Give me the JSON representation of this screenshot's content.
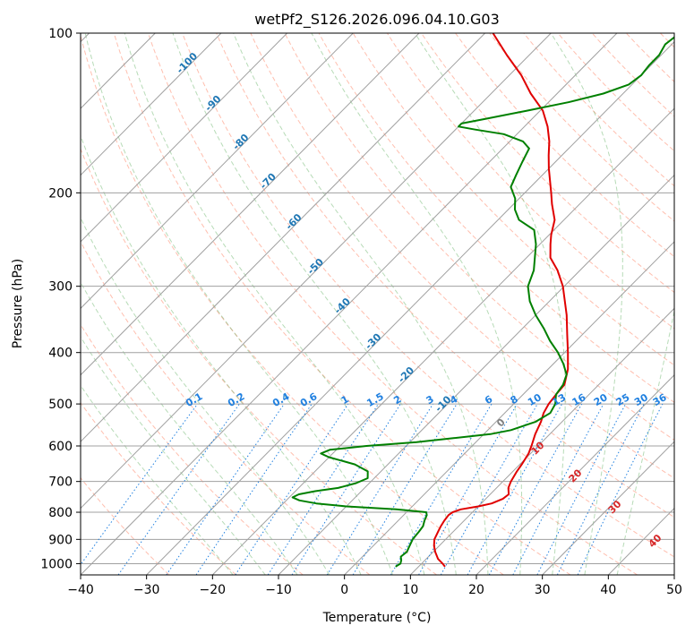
{
  "chart_data": {
    "type": "skew-t log-p",
    "title": "wetPf2_S126.2026.096.04.10.G03",
    "xlabel": "Temperature (°C)",
    "ylabel": "Pressure (hPa)",
    "xlim": [
      -40,
      50
    ],
    "ylim": [
      1050,
      100
    ],
    "yscale": "log",
    "grid": true,
    "x_ticks": [
      -40,
      -30,
      -20,
      -10,
      0,
      10,
      20,
      30,
      40,
      50
    ],
    "y_ticks": [
      100,
      200,
      300,
      400,
      500,
      600,
      700,
      800,
      900,
      1000
    ],
    "skew_isotherms_every": 10,
    "colors": {
      "temperature": "#e00000",
      "dewpoint": "#008000",
      "isotherm": "#a0a0a0",
      "dry_adiabat": "#ff8060",
      "moist_adiabat": "#60b060",
      "mixing_ratio": "#2080e0",
      "isotherm_label": "#1f77b4",
      "theta_e_label": "#d62728",
      "zero_label": "#808080"
    },
    "series": [
      {
        "key": "temperature",
        "points": [
          [
            1013,
            14.0
          ],
          [
            1000,
            13.2
          ],
          [
            980,
            11.8
          ],
          [
            950,
            10.3
          ],
          [
            925,
            9.2
          ],
          [
            900,
            8.3
          ],
          [
            870,
            7.7
          ],
          [
            850,
            7.3
          ],
          [
            830,
            7.0
          ],
          [
            810,
            6.8
          ],
          [
            800,
            7.0
          ],
          [
            790,
            7.8
          ],
          [
            780,
            10.0
          ],
          [
            770,
            11.6
          ],
          [
            755,
            12.6
          ],
          [
            740,
            12.8
          ],
          [
            720,
            11.8
          ],
          [
            700,
            11.2
          ],
          [
            670,
            10.6
          ],
          [
            650,
            10.3
          ],
          [
            620,
            9.7
          ],
          [
            600,
            9.0
          ],
          [
            570,
            7.8
          ],
          [
            540,
            6.8
          ],
          [
            520,
            5.9
          ],
          [
            500,
            5.3
          ],
          [
            480,
            5.0
          ],
          [
            460,
            4.8
          ],
          [
            430,
            3.0
          ],
          [
            400,
            0.5
          ],
          [
            370,
            -2.3
          ],
          [
            340,
            -5.3
          ],
          [
            300,
            -10.2
          ],
          [
            280,
            -13.4
          ],
          [
            265,
            -16.4
          ],
          [
            250,
            -18.4
          ],
          [
            240,
            -19.7
          ],
          [
            225,
            -21.4
          ],
          [
            210,
            -24.2
          ],
          [
            200,
            -26.0
          ],
          [
            180,
            -30.0
          ],
          [
            170,
            -32.0
          ],
          [
            160,
            -34.0
          ],
          [
            150,
            -36.5
          ],
          [
            140,
            -39.6
          ],
          [
            130,
            -44.0
          ],
          [
            120,
            -48.2
          ],
          [
            110,
            -53.4
          ],
          [
            100,
            -58.8
          ]
        ]
      },
      {
        "key": "dewpoint",
        "points": [
          [
            1013,
            6.5
          ],
          [
            1000,
            6.8
          ],
          [
            985,
            6.4
          ],
          [
            970,
            5.8
          ],
          [
            950,
            6.0
          ],
          [
            930,
            5.6
          ],
          [
            900,
            5.0
          ],
          [
            870,
            4.8
          ],
          [
            850,
            4.6
          ],
          [
            830,
            4.0
          ],
          [
            810,
            3.5
          ],
          [
            800,
            3.0
          ],
          [
            790,
            -2.0
          ],
          [
            780,
            -10.0
          ],
          [
            770,
            -15.0
          ],
          [
            760,
            -18.0
          ],
          [
            750,
            -19.5
          ],
          [
            740,
            -19.0
          ],
          [
            730,
            -17.0
          ],
          [
            720,
            -14.0
          ],
          [
            705,
            -12.0
          ],
          [
            690,
            -11.0
          ],
          [
            670,
            -12.0
          ],
          [
            650,
            -15.0
          ],
          [
            630,
            -20.0
          ],
          [
            620,
            -21.8
          ],
          [
            610,
            -21.0
          ],
          [
            600,
            -16.0
          ],
          [
            590,
            -9.0
          ],
          [
            580,
            -4.0
          ],
          [
            570,
            1.0
          ],
          [
            560,
            3.5
          ],
          [
            540,
            6.0
          ],
          [
            520,
            6.9
          ],
          [
            500,
            6.3
          ],
          [
            480,
            5.0
          ],
          [
            460,
            4.6
          ],
          [
            440,
            3.6
          ],
          [
            420,
            1.5
          ],
          [
            400,
            -1.0
          ],
          [
            380,
            -4.0
          ],
          [
            360,
            -6.8
          ],
          [
            340,
            -10.0
          ],
          [
            320,
            -13.0
          ],
          [
            300,
            -15.5
          ],
          [
            280,
            -17.0
          ],
          [
            250,
            -20.6
          ],
          [
            235,
            -23.0
          ],
          [
            225,
            -26.8
          ],
          [
            215,
            -29.0
          ],
          [
            205,
            -30.6
          ],
          [
            195,
            -33.0
          ],
          [
            185,
            -34.0
          ],
          [
            175,
            -35.0
          ],
          [
            165,
            -36.0
          ],
          [
            160,
            -38.0
          ],
          [
            155,
            -42.0
          ],
          [
            152,
            -47.0
          ],
          [
            150,
            -50.0
          ],
          [
            148,
            -50.0
          ],
          [
            145,
            -47.0
          ],
          [
            140,
            -42.0
          ],
          [
            135,
            -37.0
          ],
          [
            130,
            -33.0
          ],
          [
            125,
            -30.5
          ],
          [
            120,
            -30.0
          ],
          [
            115,
            -30.3
          ],
          [
            110,
            -30.3
          ],
          [
            105,
            -31.0
          ],
          [
            100,
            -30.5
          ]
        ]
      }
    ],
    "isotherm_labels": [
      "-100",
      "-90",
      "-80",
      "-70",
      "-60",
      "-50",
      "-40",
      "-30",
      "-20",
      "-10"
    ],
    "mixing_ratio_labels": [
      "0.1",
      "0.2",
      "0.4",
      "0.6",
      "1",
      "1.5",
      "2",
      "3",
      "4",
      "6",
      "8",
      "10",
      "13",
      "16",
      "20",
      "25",
      "30",
      "36"
    ],
    "theta_e_labels": [
      "0",
      "10",
      "20",
      "30",
      "40"
    ]
  }
}
